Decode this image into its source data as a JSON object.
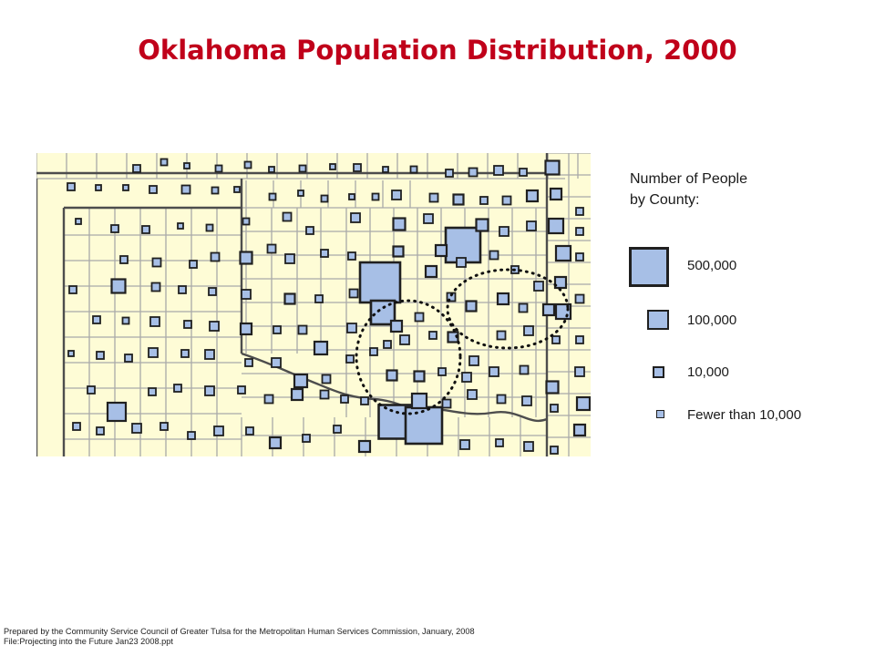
{
  "title": "Oklahoma Population Distribution, 2000",
  "map": {
    "description_label": "Oklahoma counties map with proportional squares",
    "fill_color": "#fefcd6",
    "boundary_color": "#8a8a8a",
    "symbol_color": "#a7bfe6",
    "symbol_border": "#202020",
    "circle_regions": [
      "central",
      "northeast"
    ]
  },
  "legend": {
    "heading_line1": "Number of People",
    "heading_line2": "by County:",
    "items": [
      {
        "label": "500,000"
      },
      {
        "label": "100,000"
      },
      {
        "label": "10,000"
      },
      {
        "label": "Fewer than 10,000"
      }
    ]
  },
  "footnote": {
    "line1": "Prepared by the Community Service Council of Greater Tulsa for the Metropolitan Human Services Commission, January, 2008",
    "line2": "File:Projecting into the Future Jan23 2008.ppt"
  }
}
